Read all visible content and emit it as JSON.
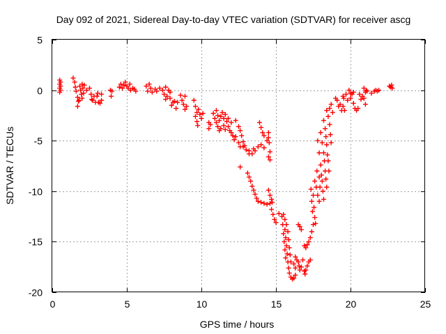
{
  "chart_data": {
    "type": "scatter",
    "title": "Day 092 of 2021, Sidereal Day-to-day VTEC variation (SDTVAR) for receiver ascg",
    "xlabel": "GPS time / hours",
    "ylabel": "SDTVAR / TECUs",
    "xlim": [
      0,
      25
    ],
    "ylim": [
      -20,
      5
    ],
    "xticks": [
      0,
      5,
      10,
      15,
      20,
      25
    ],
    "yticks": [
      5,
      0,
      -5,
      -10,
      -15,
      -20
    ],
    "grid": true,
    "marker": "+",
    "series": [
      {
        "name": "SDTVAR",
        "color": "#ff0000",
        "points": [
          [
            0.5,
            1.0
          ],
          [
            0.5,
            0.6
          ],
          [
            0.5,
            0.2
          ],
          [
            0.5,
            -0.2
          ],
          [
            0.55,
            0.8
          ],
          [
            0.55,
            0.4
          ],
          [
            0.55,
            0.0
          ],
          [
            1.4,
            1.2
          ],
          [
            1.5,
            0.8
          ],
          [
            1.55,
            0.3
          ],
          [
            1.6,
            -0.1
          ],
          [
            1.7,
            -0.7
          ],
          [
            1.75,
            -1.1
          ],
          [
            1.7,
            -1.6
          ],
          [
            1.8,
            -1.0
          ],
          [
            1.85,
            0.4
          ],
          [
            1.9,
            0.0
          ],
          [
            1.95,
            -0.4
          ],
          [
            2.0,
            0.6
          ],
          [
            2.05,
            0.2
          ],
          [
            2.1,
            -0.3
          ],
          [
            2.0,
            -0.8
          ],
          [
            2.15,
            0.5
          ],
          [
            2.3,
            0.0
          ],
          [
            2.5,
            0.2
          ],
          [
            2.6,
            -0.4
          ],
          [
            2.65,
            -0.9
          ],
          [
            2.7,
            -1.0
          ],
          [
            2.8,
            -0.6
          ],
          [
            2.9,
            -1.2
          ],
          [
            3.0,
            -0.6
          ],
          [
            3.05,
            -0.3
          ],
          [
            3.1,
            -1.2
          ],
          [
            3.2,
            -1.3
          ],
          [
            3.3,
            -0.4
          ],
          [
            3.3,
            -1.0
          ],
          [
            3.9,
            0.0
          ],
          [
            3.95,
            -0.6
          ],
          [
            4.0,
            -0.1
          ],
          [
            4.5,
            0.3
          ],
          [
            4.6,
            0.6
          ],
          [
            4.7,
            0.2
          ],
          [
            4.8,
            0.5
          ],
          [
            4.9,
            0.8
          ],
          [
            5.0,
            0.4
          ],
          [
            5.1,
            0.2
          ],
          [
            5.2,
            0.6
          ],
          [
            5.25,
            0.0
          ],
          [
            5.4,
            0.2
          ],
          [
            5.5,
            0.1
          ],
          [
            5.6,
            -0.1
          ],
          [
            6.3,
            0.4
          ],
          [
            6.4,
            -0.1
          ],
          [
            6.5,
            0.6
          ],
          [
            6.6,
            0.2
          ],
          [
            6.7,
            -0.2
          ],
          [
            6.9,
            0.1
          ],
          [
            7.0,
            -0.1
          ],
          [
            7.2,
            0.2
          ],
          [
            7.4,
            0.0
          ],
          [
            7.6,
            0.3
          ],
          [
            7.8,
            0.0
          ],
          [
            7.9,
            -0.2
          ],
          [
            7.5,
            -0.4
          ],
          [
            7.6,
            -0.9
          ],
          [
            7.7,
            -0.6
          ],
          [
            7.9,
            -0.8
          ],
          [
            8.0,
            -1.5
          ],
          [
            8.1,
            -1.2
          ],
          [
            8.2,
            -1.1
          ],
          [
            8.3,
            -1.8
          ],
          [
            8.4,
            -1.2
          ],
          [
            8.6,
            -0.5
          ],
          [
            8.7,
            -1.0
          ],
          [
            8.8,
            -1.4
          ],
          [
            8.9,
            -1.9
          ],
          [
            9.0,
            -1.6
          ],
          [
            8.9,
            -0.6
          ],
          [
            9.5,
            -1.0
          ],
          [
            9.6,
            -1.6
          ],
          [
            9.7,
            -2.2
          ],
          [
            9.8,
            -1.9
          ],
          [
            9.9,
            -2.4
          ],
          [
            10.0,
            -2.8
          ],
          [
            10.1,
            -2.3
          ],
          [
            9.6,
            -2.6
          ],
          [
            9.7,
            -3.1
          ],
          [
            9.75,
            -3.5
          ],
          [
            10.5,
            -3.2
          ],
          [
            10.5,
            -3.8
          ],
          [
            10.6,
            -3.4
          ],
          [
            10.8,
            -2.3
          ],
          [
            10.9,
            -2.8
          ],
          [
            11.0,
            -3.2
          ],
          [
            11.0,
            -2.0
          ],
          [
            11.1,
            -2.5
          ],
          [
            11.2,
            -3.0
          ],
          [
            11.3,
            -2.6
          ],
          [
            11.4,
            -2.2
          ],
          [
            11.5,
            -2.8
          ],
          [
            11.6,
            -2.4
          ],
          [
            11.7,
            -3.1
          ],
          [
            11.1,
            -3.6
          ],
          [
            11.2,
            -4.0
          ],
          [
            11.3,
            -3.8
          ],
          [
            11.5,
            -3.5
          ],
          [
            11.6,
            -3.9
          ],
          [
            11.8,
            -3.6
          ],
          [
            11.9,
            -4.0
          ],
          [
            12.0,
            -4.2
          ],
          [
            12.1,
            -4.5
          ],
          [
            12.2,
            -4.9
          ],
          [
            12.3,
            -4.6
          ],
          [
            11.8,
            -2.8
          ],
          [
            12.0,
            -3.2
          ],
          [
            12.3,
            -3.0
          ],
          [
            12.5,
            -3.6
          ],
          [
            12.6,
            -4.0
          ],
          [
            12.7,
            -4.5
          ],
          [
            12.8,
            -5.1
          ],
          [
            12.9,
            -5.5
          ],
          [
            12.5,
            -5.2
          ],
          [
            12.6,
            -5.6
          ],
          [
            12.8,
            -5.6
          ],
          [
            13.0,
            -5.9
          ],
          [
            13.2,
            -6.3
          ],
          [
            13.5,
            -5.8
          ],
          [
            13.6,
            -6.0
          ],
          [
            13.8,
            -5.6
          ],
          [
            14.0,
            -5.4
          ],
          [
            14.2,
            -5.7
          ],
          [
            14.4,
            -5.0
          ],
          [
            13.2,
            -6.0
          ],
          [
            13.4,
            -6.3
          ],
          [
            13.9,
            -3.2
          ],
          [
            14.0,
            -3.7
          ],
          [
            14.1,
            -4.2
          ],
          [
            14.2,
            -4.5
          ],
          [
            14.5,
            -4.2
          ],
          [
            14.5,
            -4.7
          ],
          [
            14.55,
            -5.2
          ],
          [
            14.6,
            -6.1
          ],
          [
            14.5,
            -6.6
          ],
          [
            14.6,
            -6.9
          ],
          [
            12.6,
            -7.6
          ],
          [
            13.1,
            -8.2
          ],
          [
            13.2,
            -8.6
          ],
          [
            13.3,
            -9.0
          ],
          [
            13.4,
            -9.5
          ],
          [
            13.5,
            -9.9
          ],
          [
            13.6,
            -10.3
          ],
          [
            13.7,
            -10.7
          ],
          [
            13.8,
            -11.0
          ],
          [
            14.0,
            -11.1
          ],
          [
            14.2,
            -11.2
          ],
          [
            14.4,
            -11.3
          ],
          [
            14.6,
            -11.2
          ],
          [
            14.5,
            -9.9
          ],
          [
            14.6,
            -10.4
          ],
          [
            14.7,
            -10.8
          ],
          [
            14.75,
            -11.1
          ],
          [
            14.7,
            -11.8
          ],
          [
            14.8,
            -12.3
          ],
          [
            14.9,
            -12.8
          ],
          [
            15.0,
            -13.1
          ],
          [
            15.2,
            -12.2
          ],
          [
            15.4,
            -12.5
          ],
          [
            15.5,
            -12.3
          ],
          [
            15.6,
            -12.8
          ],
          [
            15.7,
            -13.3
          ],
          [
            15.8,
            -14.0
          ],
          [
            15.85,
            -14.8
          ],
          [
            15.9,
            -15.6
          ],
          [
            15.95,
            -16.3
          ],
          [
            16.0,
            -17.0
          ],
          [
            15.6,
            -13.8
          ],
          [
            15.65,
            -14.6
          ],
          [
            15.7,
            -15.4
          ],
          [
            15.75,
            -16.2
          ],
          [
            15.8,
            -17.0
          ],
          [
            15.85,
            -17.6
          ],
          [
            15.9,
            -18.1
          ],
          [
            16.0,
            -18.5
          ],
          [
            16.1,
            -18.7
          ],
          [
            16.2,
            -18.6
          ],
          [
            16.3,
            -18.3
          ],
          [
            15.45,
            -13.3
          ],
          [
            15.5,
            -14.2
          ],
          [
            15.55,
            -15.0
          ],
          [
            15.6,
            -15.8
          ],
          [
            15.65,
            -16.6
          ],
          [
            16.3,
            -16.5
          ],
          [
            16.4,
            -16.8
          ],
          [
            16.5,
            -17.0
          ],
          [
            16.55,
            -17.4
          ],
          [
            16.6,
            -17.8
          ],
          [
            16.7,
            -17.5
          ],
          [
            16.8,
            -16.8
          ],
          [
            16.2,
            -17.2
          ],
          [
            16.3,
            -17.6
          ],
          [
            16.5,
            -13.3
          ],
          [
            16.6,
            -13.5
          ],
          [
            16.7,
            -13.8
          ],
          [
            16.9,
            -17.9
          ],
          [
            16.95,
            -18.2
          ],
          [
            17.0,
            -17.8
          ],
          [
            17.1,
            -17.4
          ],
          [
            17.2,
            -17.0
          ],
          [
            17.3,
            -16.8
          ],
          [
            16.9,
            -15.4
          ],
          [
            17.0,
            -15.6
          ],
          [
            17.1,
            -15.3
          ],
          [
            17.2,
            -15.0
          ],
          [
            17.3,
            -14.6
          ],
          [
            17.4,
            -14.0
          ],
          [
            17.5,
            -13.3
          ],
          [
            17.35,
            -9.8
          ],
          [
            17.4,
            -11.0
          ],
          [
            17.45,
            -12.0
          ],
          [
            17.5,
            -10.4
          ],
          [
            17.55,
            -11.6
          ],
          [
            17.6,
            -12.6
          ],
          [
            17.65,
            -13.2
          ],
          [
            17.6,
            -9.0
          ],
          [
            17.7,
            -9.6
          ],
          [
            17.8,
            -10.4
          ],
          [
            17.9,
            -11.0
          ],
          [
            17.75,
            -8.0
          ],
          [
            17.9,
            -8.6
          ],
          [
            17.95,
            -9.6
          ],
          [
            17.8,
            -5.0
          ],
          [
            17.9,
            -6.2
          ],
          [
            18.0,
            -7.4
          ],
          [
            18.05,
            -8.4
          ],
          [
            18.1,
            -9.0
          ],
          [
            18.15,
            -10.0
          ],
          [
            18.2,
            -10.8
          ],
          [
            18.0,
            -4.2
          ],
          [
            18.1,
            -5.2
          ],
          [
            18.2,
            -6.2
          ],
          [
            18.25,
            -7.0
          ],
          [
            18.3,
            -8.0
          ],
          [
            18.35,
            -8.8
          ],
          [
            18.4,
            -9.6
          ],
          [
            18.2,
            -3.0
          ],
          [
            18.3,
            -3.8
          ],
          [
            18.35,
            -4.6
          ],
          [
            18.4,
            -5.4
          ],
          [
            18.45,
            -6.4
          ],
          [
            18.5,
            -7.0
          ],
          [
            18.55,
            -8.0
          ],
          [
            18.4,
            -2.0
          ],
          [
            18.5,
            -2.6
          ],
          [
            18.6,
            -1.8
          ],
          [
            18.7,
            -1.4
          ],
          [
            18.8,
            -2.2
          ],
          [
            18.6,
            -3.4
          ],
          [
            18.65,
            -4.4
          ],
          [
            18.7,
            -5.2
          ],
          [
            19.0,
            -0.8
          ],
          [
            19.1,
            -1.0
          ],
          [
            19.2,
            -1.6
          ],
          [
            19.3,
            -1.4
          ],
          [
            19.4,
            -2.0
          ],
          [
            19.5,
            -1.6
          ],
          [
            19.6,
            -2.0
          ],
          [
            19.5,
            -0.6
          ],
          [
            19.55,
            -0.8
          ],
          [
            19.7,
            -0.4
          ],
          [
            19.8,
            -1.0
          ],
          [
            19.9,
            0.0
          ],
          [
            20.0,
            -0.3
          ],
          [
            20.1,
            -0.4
          ],
          [
            20.2,
            -0.2
          ],
          [
            20.0,
            -0.8
          ],
          [
            20.2,
            -1.3
          ],
          [
            20.3,
            -1.8
          ],
          [
            20.4,
            -2.0
          ],
          [
            20.5,
            -1.8
          ],
          [
            20.6,
            -0.4
          ],
          [
            20.7,
            -0.9
          ],
          [
            20.8,
            -0.6
          ],
          [
            20.9,
            -0.8
          ],
          [
            21.0,
            -1.4
          ],
          [
            20.9,
            0.2
          ],
          [
            21.0,
            -0.2
          ],
          [
            21.05,
            0.0
          ],
          [
            21.1,
            -0.1
          ],
          [
            21.4,
            -0.3
          ],
          [
            21.6,
            -0.1
          ],
          [
            21.7,
            0.0
          ],
          [
            21.8,
            -0.1
          ],
          [
            21.9,
            0.0
          ],
          [
            22.6,
            0.4
          ],
          [
            22.7,
            0.3
          ],
          [
            22.75,
            0.5
          ],
          [
            22.8,
            0.2
          ]
        ]
      }
    ]
  }
}
